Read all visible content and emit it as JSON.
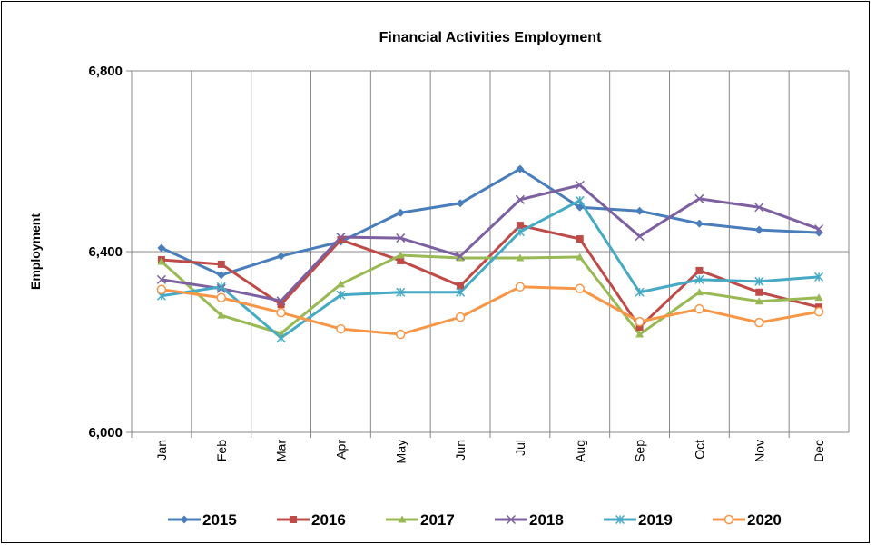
{
  "chart_data": {
    "type": "line",
    "title": "Financial Activities Employment",
    "y_label": "Employment",
    "categories": [
      "Jan",
      "Feb",
      "Mar",
      "Apr",
      "May",
      "Jun",
      "Jul",
      "Aug",
      "Sep",
      "Oct",
      "Nov",
      "Dec"
    ],
    "ylim": [
      6000,
      6800
    ],
    "yticks": [
      {
        "value": 6000,
        "label": "6,000"
      },
      {
        "value": 6400,
        "label": "6,400"
      },
      {
        "value": 6800,
        "label": "6,800"
      }
    ],
    "grid": true,
    "legend": "bottom",
    "series": [
      {
        "name": "2015",
        "color": "#4a7ebb",
        "marker": "diamond",
        "values": [
          6408,
          6348,
          6390,
          6422,
          6486,
          6507,
          6583,
          6498,
          6490,
          6462,
          6448,
          6442
        ]
      },
      {
        "name": "2016",
        "color": "#be4b48",
        "marker": "square",
        "values": [
          6382,
          6372,
          6283,
          6426,
          6380,
          6324,
          6458,
          6428,
          6233,
          6358,
          6310,
          6277
        ]
      },
      {
        "name": "2017",
        "color": "#98b954",
        "marker": "triangle",
        "values": [
          6378,
          6259,
          6219,
          6328,
          6392,
          6386,
          6386,
          6388,
          6217,
          6310,
          6290,
          6298
        ]
      },
      {
        "name": "2018",
        "color": "#7d60a0",
        "marker": "x",
        "values": [
          6338,
          6318,
          6291,
          6432,
          6430,
          6390,
          6515,
          6547,
          6434,
          6517,
          6498,
          6450
        ]
      },
      {
        "name": "2019",
        "color": "#46aac5",
        "marker": "star",
        "values": [
          6302,
          6322,
          6209,
          6304,
          6310,
          6310,
          6444,
          6513,
          6310,
          6338,
          6334,
          6344
        ]
      },
      {
        "name": "2020",
        "color": "#f79646",
        "marker": "circle",
        "values": [
          6316,
          6298,
          6265,
          6229,
          6217,
          6255,
          6322,
          6318,
          6245,
          6273,
          6243,
          6267
        ]
      }
    ]
  }
}
